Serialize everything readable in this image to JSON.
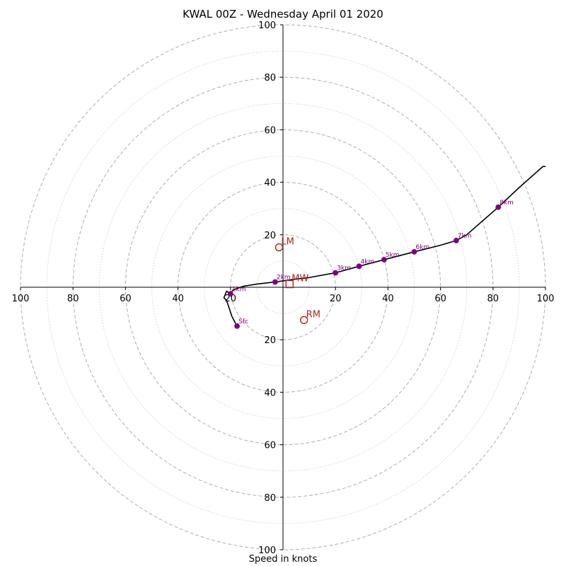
{
  "chart_data": {
    "type": "line",
    "title": "KWAL 00Z - Wednesday April 01 2020",
    "xlabel": "Speed in knots",
    "range": 100,
    "rings_major": [
      20,
      40,
      60,
      80,
      100
    ],
    "rings_minor": [
      10,
      30,
      50,
      70,
      90
    ],
    "tick_labels": {
      "x_left": [
        "100",
        "80",
        "60",
        "40",
        "20"
      ],
      "x_right": [
        "20",
        "40",
        "60",
        "80",
        "100"
      ],
      "y_top": [
        "100",
        "80",
        "60",
        "40",
        "20"
      ],
      "y_bottom": [
        "20",
        "40",
        "60",
        "80",
        "100"
      ]
    },
    "hodograph": {
      "line_color": "#000000",
      "points": [
        [
          -17.5,
          -14.8
        ],
        [
          -18.5,
          -13
        ],
        [
          -19.5,
          -11
        ],
        [
          -20.5,
          -8
        ],
        [
          -21.5,
          -5
        ],
        [
          -22.5,
          -4
        ],
        [
          -21.5,
          -1.5
        ],
        [
          -20,
          -2.5
        ],
        [
          -19,
          -1
        ],
        [
          -15,
          0.4
        ],
        [
          -10,
          1.2
        ],
        [
          -3,
          2
        ],
        [
          4,
          3
        ],
        [
          10,
          3.7
        ],
        [
          20,
          5.5
        ],
        [
          29,
          8
        ],
        [
          38.5,
          10.5
        ],
        [
          50,
          13.5
        ],
        [
          60,
          16
        ],
        [
          66,
          17.8
        ],
        [
          70,
          20
        ],
        [
          82,
          30.5
        ],
        [
          90,
          38
        ],
        [
          99,
          46
        ],
        [
          100,
          46
        ]
      ]
    },
    "height_markers": {
      "color": "#800080",
      "points": [
        {
          "label": "Sfc",
          "u": -17.5,
          "v": -14.8
        },
        {
          "label": "1km",
          "u": -20,
          "v": -2.5
        },
        {
          "label": "2km",
          "u": -3,
          "v": 2
        },
        {
          "label": "3km",
          "u": 20,
          "v": 5.5
        },
        {
          "label": "4km",
          "u": 29,
          "v": 8
        },
        {
          "label": "5km",
          "u": 38.5,
          "v": 10.5
        },
        {
          "label": "6km",
          "u": 50,
          "v": 13.5
        },
        {
          "label": "7km",
          "u": 66,
          "v": 17.8
        },
        {
          "label": "8km",
          "u": 82,
          "v": 30.5
        }
      ]
    },
    "storm_motion": {
      "color": "#b22222",
      "points": [
        {
          "label": "LM",
          "u": -1.5,
          "v": 15.2,
          "marker": "circle"
        },
        {
          "label": "RM",
          "u": 8,
          "v": -12.5,
          "marker": "circle"
        },
        {
          "label": "MW",
          "u": 2.5,
          "v": 1.2,
          "marker": "square"
        }
      ]
    }
  }
}
